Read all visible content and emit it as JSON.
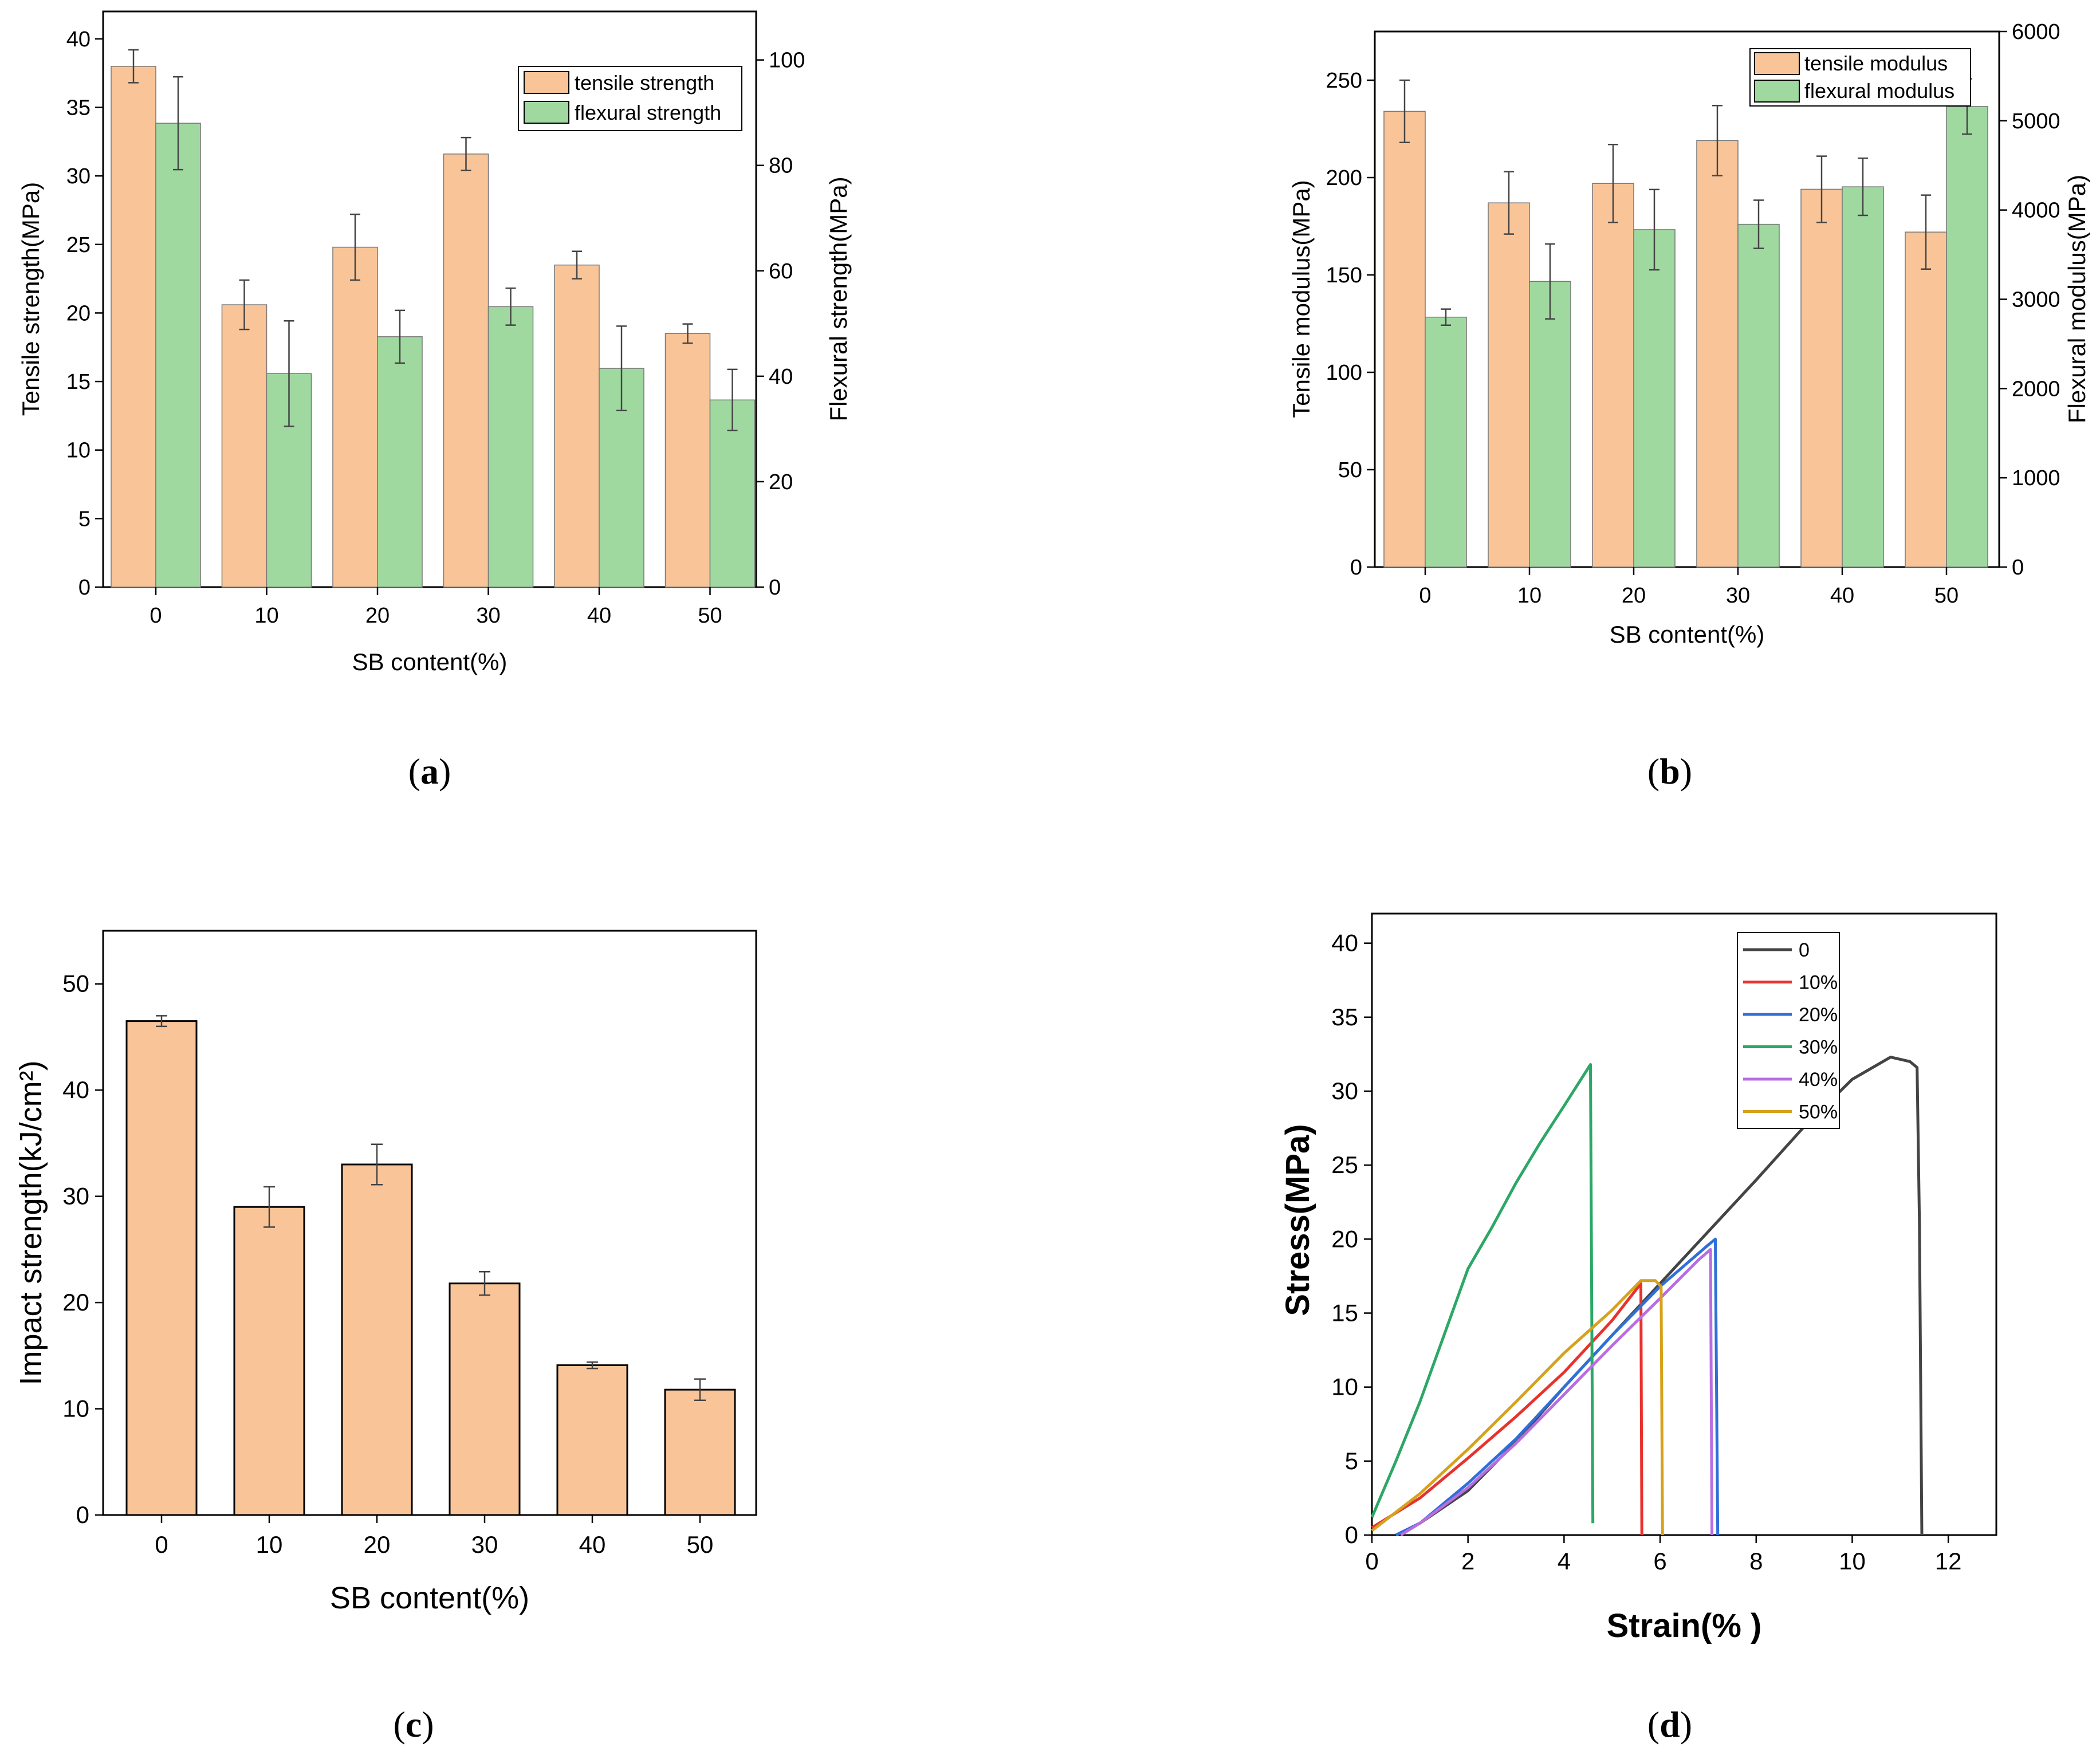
{
  "panels": {
    "a": "a",
    "b": "b",
    "c": "c",
    "d": "d"
  },
  "colors": {
    "tensile": "#f9c598",
    "flexural": "#9fd9a0",
    "impact": "#f9c598",
    "errorbar": "#444444"
  },
  "chart_data": [
    {
      "id": "a",
      "type": "bar",
      "categories": [
        "0",
        "10",
        "20",
        "30",
        "40",
        "50"
      ],
      "xlabel": "SB content(%)",
      "ylabel": "Tensile strength(MPa)",
      "y2label": "Flexural strength(MPa)",
      "ylim": [
        0,
        42
      ],
      "y2lim": [
        0,
        109.2
      ],
      "yticks": [
        "0",
        "5",
        "10",
        "15",
        "20",
        "25",
        "30",
        "35",
        "40"
      ],
      "y2ticks": [
        "0",
        "20",
        "40",
        "60",
        "80",
        "100"
      ],
      "series": [
        {
          "name": "tensile strength",
          "axis": "left",
          "values": [
            38,
            20.6,
            24.8,
            31.6,
            23.5,
            18.5
          ],
          "errors": [
            1.2,
            1.8,
            2.4,
            1.2,
            1.0,
            0.7
          ]
        },
        {
          "name": "flexural strength",
          "axis": "right",
          "values": [
            88,
            40.5,
            47.5,
            53.2,
            41.5,
            35.5
          ],
          "errors": [
            8.8,
            10.0,
            5.0,
            3.5,
            8.0,
            5.8
          ]
        }
      ]
    },
    {
      "id": "b",
      "type": "bar",
      "categories": [
        "0",
        "10",
        "20",
        "30",
        "40",
        "50"
      ],
      "xlabel": "SB content(%)",
      "ylabel": "Tensile modulus(MPa)",
      "y2label": "Flexural modulus(MPa)",
      "ylim": [
        0,
        275
      ],
      "y2lim": [
        0,
        6000
      ],
      "yticks": [
        "0",
        "50",
        "100",
        "150",
        "200",
        "250"
      ],
      "y2ticks": [
        "0",
        "1000",
        "2000",
        "3000",
        "4000",
        "5000",
        "6000"
      ],
      "series": [
        {
          "name": "tensile modulus",
          "axis": "left",
          "values": [
            234,
            187,
            197,
            219,
            194,
            172
          ],
          "errors": [
            16,
            16,
            20,
            18,
            17,
            19
          ]
        },
        {
          "name": "flexural modulus",
          "axis": "right",
          "values": [
            2800,
            3200,
            3780,
            3840,
            4260,
            5160
          ],
          "errors": [
            90,
            420,
            450,
            270,
            320,
            310
          ]
        }
      ]
    },
    {
      "id": "c",
      "type": "bar",
      "categories": [
        "0",
        "10",
        "20",
        "30",
        "40",
        "50"
      ],
      "xlabel": "SB content(%)",
      "ylabel": "Impact strength(kJ/cm²)",
      "ylim": [
        0,
        55
      ],
      "yticks": [
        "0",
        "10",
        "20",
        "30",
        "40",
        "50"
      ],
      "series": [
        {
          "name": "impact strength",
          "values": [
            46.5,
            29.0,
            33.0,
            21.8,
            14.1,
            11.8
          ],
          "errors": [
            0.5,
            1.9,
            1.9,
            1.1,
            0.3,
            1.0
          ]
        }
      ]
    },
    {
      "id": "d",
      "type": "line",
      "xlabel": "Strain(% )",
      "ylabel": "Stress(MPa)",
      "xlim": [
        0,
        13
      ],
      "ylim": [
        0,
        42
      ],
      "xticks": [
        "0",
        "2",
        "4",
        "6",
        "8",
        "10",
        "12"
      ],
      "yticks": [
        "0",
        "5",
        "10",
        "15",
        "20",
        "25",
        "30",
        "35",
        "40"
      ],
      "series": [
        {
          "name": "0",
          "color": "#444444",
          "points": [
            [
              0.5,
              0
            ],
            [
              1,
              0.8
            ],
            [
              2,
              3
            ],
            [
              3,
              6.3
            ],
            [
              4,
              10
            ],
            [
              5,
              13.5
            ],
            [
              6,
              17
            ],
            [
              7,
              20.5
            ],
            [
              8,
              24
            ],
            [
              9,
              27.6
            ],
            [
              10,
              30.8
            ],
            [
              10.8,
              32.3
            ],
            [
              11.2,
              32.0
            ],
            [
              11.35,
              31.6
            ],
            [
              11.4,
              21
            ],
            [
              11.45,
              0
            ]
          ]
        },
        {
          "name": "10%",
          "color": "#e8322e",
          "points": [
            [
              0,
              0.5
            ],
            [
              1,
              2.5
            ],
            [
              2,
              5.2
            ],
            [
              3,
              8
            ],
            [
              4,
              11
            ],
            [
              5,
              14.5
            ],
            [
              5.6,
              17
            ],
            [
              5.62,
              0
            ]
          ]
        },
        {
          "name": "20%",
          "color": "#2f6fd8",
          "points": [
            [
              0.5,
              0
            ],
            [
              1,
              0.8
            ],
            [
              2,
              3.5
            ],
            [
              3,
              6.5
            ],
            [
              4,
              10
            ],
            [
              5,
              13.5
            ],
            [
              6,
              16.8
            ],
            [
              7,
              19.6
            ],
            [
              7.15,
              20
            ],
            [
              7.2,
              0
            ]
          ]
        },
        {
          "name": "30%",
          "color": "#2ca866",
          "points": [
            [
              0,
              1.2
            ],
            [
              0.5,
              5
            ],
            [
              1,
              9
            ],
            [
              1.5,
              13.5
            ],
            [
              2,
              18
            ],
            [
              2.5,
              20.8
            ],
            [
              3,
              23.8
            ],
            [
              3.5,
              26.5
            ],
            [
              4,
              29
            ],
            [
              4.55,
              31.8
            ],
            [
              4.6,
              0.8
            ]
          ]
        },
        {
          "name": "40%",
          "color": "#b86de0",
          "points": [
            [
              0.6,
              0
            ],
            [
              1,
              0.8
            ],
            [
              2,
              3.2
            ],
            [
              3,
              6.2
            ],
            [
              4,
              9.5
            ],
            [
              5,
              12.8
            ],
            [
              6,
              16
            ],
            [
              6.8,
              18.6
            ],
            [
              7.05,
              19.3
            ],
            [
              7.08,
              0
            ]
          ]
        },
        {
          "name": "50%",
          "color": "#d6a11c",
          "points": [
            [
              0,
              0.3
            ],
            [
              1,
              2.8
            ],
            [
              2,
              5.8
            ],
            [
              3,
              9
            ],
            [
              4,
              12.3
            ],
            [
              5,
              15.2
            ],
            [
              5.6,
              17.2
            ],
            [
              5.9,
              17.2
            ],
            [
              6.02,
              16.8
            ],
            [
              6.05,
              0
            ]
          ]
        }
      ]
    }
  ]
}
